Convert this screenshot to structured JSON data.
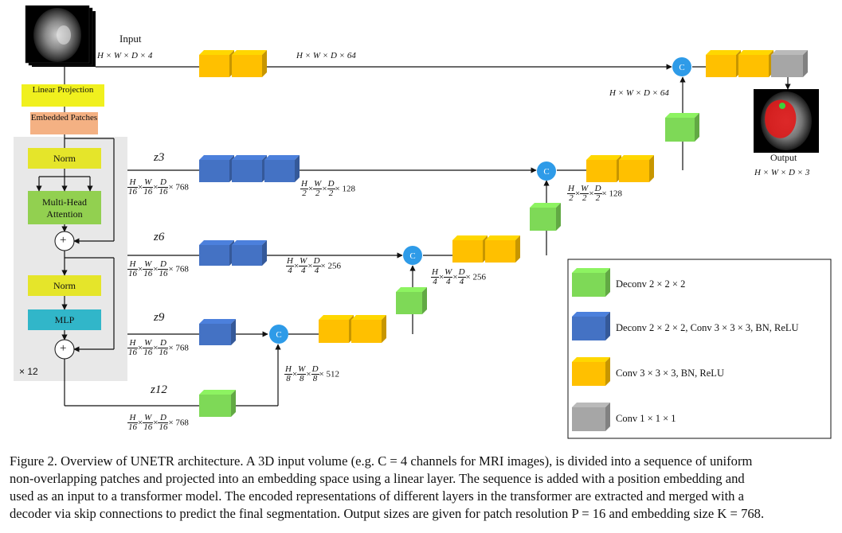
{
  "diagram": {
    "input_label": "Input",
    "input_dims": "H × W × D × 4",
    "linear_projection": "Linear Projection",
    "embedded_patches": "Embedded Patches",
    "norm1": "Norm",
    "mha": "Multi-Head Attention",
    "plus": "+",
    "norm2": "Norm",
    "mlp": "MLP",
    "repeat": "× 12",
    "z_labels": [
      "z3",
      "z6",
      "z9",
      "z12"
    ],
    "top_dims": "H × W × D × 64",
    "right_dims": "H × W × D × 64",
    "output_label": "Output",
    "output_dims": "H × W × D × 3",
    "concat": "C",
    "enc_768": "× 768",
    "dims_128": "× 128",
    "dims_256": "× 256",
    "dims_512": "× 512",
    "frac_H16": [
      "H",
      "16"
    ],
    "frac_W16": [
      "W",
      "16"
    ],
    "frac_D16": [
      "D",
      "16"
    ],
    "frac_H2": [
      "H",
      "2"
    ],
    "frac_W2": [
      "W",
      "2"
    ],
    "frac_D2": [
      "D",
      "2"
    ],
    "frac_H4": [
      "H",
      "4"
    ],
    "frac_W4": [
      "W",
      "4"
    ],
    "frac_D4": [
      "D",
      "4"
    ],
    "frac_H8": [
      "H",
      "8"
    ],
    "frac_W8": [
      "W",
      "8"
    ],
    "frac_D8": [
      "D",
      "8"
    ]
  },
  "legend": {
    "items": [
      {
        "label": "Deconv 2 × 2 × 2",
        "color": "#7ed957"
      },
      {
        "label": "Deconv 2 × 2 × 2,  Conv 3 × 3 × 3,  BN,  ReLU",
        "color": "#4472c4"
      },
      {
        "label": "Conv 3 × 3 × 3,  BN,  ReLU",
        "color": "#ffc000"
      },
      {
        "label": "Conv 1 × 1 × 1",
        "color": "#a6a6a6"
      }
    ]
  },
  "caption": {
    "line1": "Figure 2. Overview of UNETR architecture. A 3D input volume (e.g. C = 4 channels for MRI images), is divided into a sequence of uniform",
    "line2": "non-overlapping patches and projected into an embedding space using a linear layer. The sequence is added with a position embedding and",
    "line3": "used as an input to a transformer model. The encoded representations of different layers in the transformer are extracted and merged with a",
    "line4": "decoder via skip connections to predict the final segmentation. Output sizes are given for patch resolution P = 16 and embedding size K = 768."
  },
  "colors": {
    "green": "#7ed957",
    "blue": "#4472c4",
    "yellow": "#ffc000",
    "gray": "#a6a6a6",
    "concat_blue": "#2e9be8",
    "linear_proj": "#f0f01e",
    "embedded": "#f4b183",
    "norm": "#e5e52a",
    "mha": "#92d050",
    "mlp": "#31b6c9",
    "transformer_bg": "#e8e8e8"
  }
}
